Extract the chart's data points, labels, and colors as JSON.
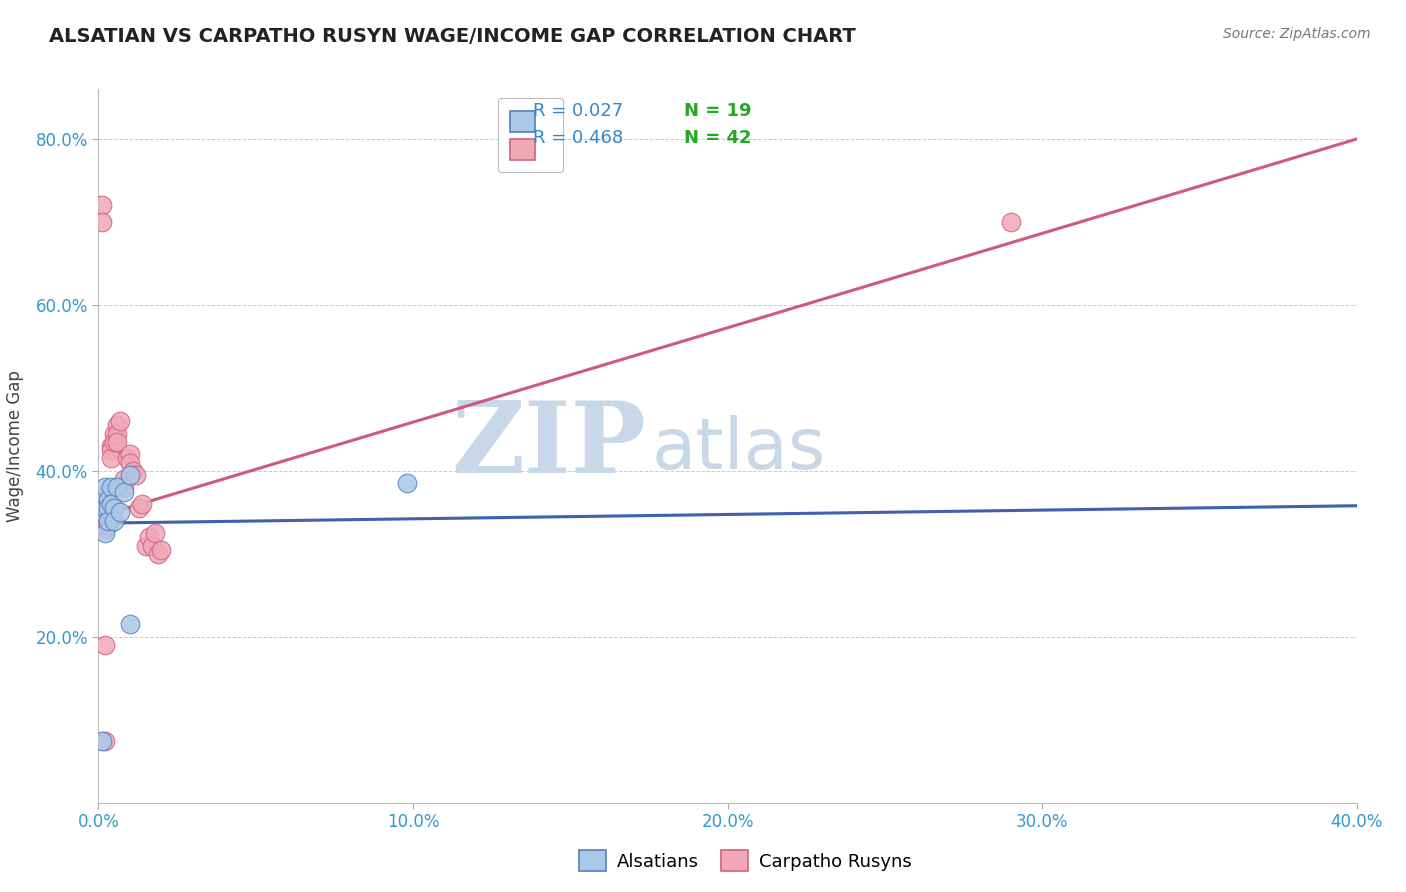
{
  "title": "ALSATIAN VS CARPATHO RUSYN WAGE/INCOME GAP CORRELATION CHART",
  "source": "Source: ZipAtlas.com",
  "ylabel": "Wage/Income Gap",
  "xmin": 0.0,
  "xmax": 0.4,
  "ymin": 0.0,
  "ymax": 0.86,
  "x_tick_labels": [
    "0.0%",
    "10.0%",
    "20.0%",
    "30.0%",
    "40.0%"
  ],
  "x_tick_vals": [
    0.0,
    0.1,
    0.2,
    0.3,
    0.4
  ],
  "y_tick_labels": [
    "20.0%",
    "40.0%",
    "60.0%",
    "80.0%"
  ],
  "y_tick_vals": [
    0.2,
    0.4,
    0.6,
    0.8
  ],
  "grid_color": "#cccccc",
  "background_color": "#ffffff",
  "alsatian_color": "#aac8e8",
  "carpatho_color": "#f0a8b8",
  "alsatian_edge_color": "#5580c0",
  "carpatho_edge_color": "#d06080",
  "alsatian_line_color": "#4060b0",
  "carpatho_line_color": "#d05878",
  "R_alsatian": 0.027,
  "N_alsatian": 19,
  "R_carpatho": 0.468,
  "N_carpatho": 42,
  "legend_R_color": "#3388cc",
  "legend_N_color": "#22aa22",
  "alsatian_line_x0": 0.0,
  "alsatian_line_y0": 0.337,
  "alsatian_line_x1": 0.4,
  "alsatian_line_y1": 0.358,
  "carpatho_line_x0": 0.0,
  "carpatho_line_y0": 0.345,
  "carpatho_line_x1": 0.4,
  "carpatho_line_y1": 0.8,
  "alsatian_x": [
    0.001,
    0.001,
    0.001,
    0.002,
    0.002,
    0.002,
    0.003,
    0.003,
    0.003,
    0.004,
    0.004,
    0.005,
    0.005,
    0.006,
    0.007,
    0.008,
    0.01,
    0.01,
    0.098
  ],
  "alsatian_y": [
    0.365,
    0.35,
    0.075,
    0.38,
    0.355,
    0.325,
    0.365,
    0.355,
    0.34,
    0.38,
    0.36,
    0.355,
    0.34,
    0.38,
    0.35,
    0.375,
    0.395,
    0.215,
    0.385
  ],
  "carpatho_x": [
    0.001,
    0.001,
    0.001,
    0.001,
    0.002,
    0.002,
    0.002,
    0.002,
    0.002,
    0.003,
    0.003,
    0.003,
    0.003,
    0.003,
    0.004,
    0.004,
    0.004,
    0.005,
    0.005,
    0.006,
    0.006,
    0.006,
    0.007,
    0.008,
    0.008,
    0.009,
    0.01,
    0.01,
    0.011,
    0.012,
    0.013,
    0.014,
    0.015,
    0.016,
    0.017,
    0.018,
    0.019,
    0.02,
    0.002,
    0.002,
    0.29,
    0.001
  ],
  "carpatho_y": [
    0.36,
    0.345,
    0.335,
    0.72,
    0.37,
    0.36,
    0.35,
    0.34,
    0.33,
    0.375,
    0.365,
    0.355,
    0.345,
    0.335,
    0.43,
    0.425,
    0.415,
    0.445,
    0.435,
    0.455,
    0.445,
    0.435,
    0.46,
    0.39,
    0.38,
    0.415,
    0.42,
    0.41,
    0.4,
    0.395,
    0.355,
    0.36,
    0.31,
    0.32,
    0.31,
    0.325,
    0.3,
    0.305,
    0.19,
    0.075,
    0.7,
    0.7
  ],
  "watermark_zip": "ZIP",
  "watermark_atlas": "atlas",
  "watermark_color": "#c8d8e8",
  "legend_label_alsatian": "Alsatians",
  "legend_label_carpatho": "Carpatho Rusyns"
}
